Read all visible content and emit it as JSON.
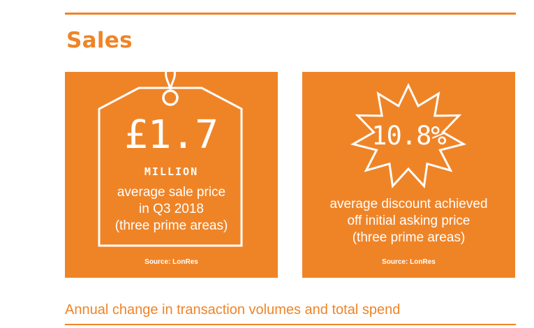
{
  "section": {
    "title": "Sales"
  },
  "cards": [
    {
      "value": "£1.7",
      "unit": "MILLION",
      "description_lines": [
        "average sale price",
        "in Q3 2018",
        "(three prime areas)"
      ],
      "source": "Source: LonRes",
      "icon": "price-tag-icon"
    },
    {
      "value": "10.8%",
      "description_lines": [
        "average discount achieved",
        "off initial asking price",
        "(three prime areas)"
      ],
      "source": "Source: LonRes",
      "icon": "starburst-icon"
    }
  ],
  "next_section": {
    "heading": "Annual change in transaction volumes and total spend"
  },
  "colors": {
    "accent": "#ef8427",
    "text_on_accent": "#ffffff"
  }
}
